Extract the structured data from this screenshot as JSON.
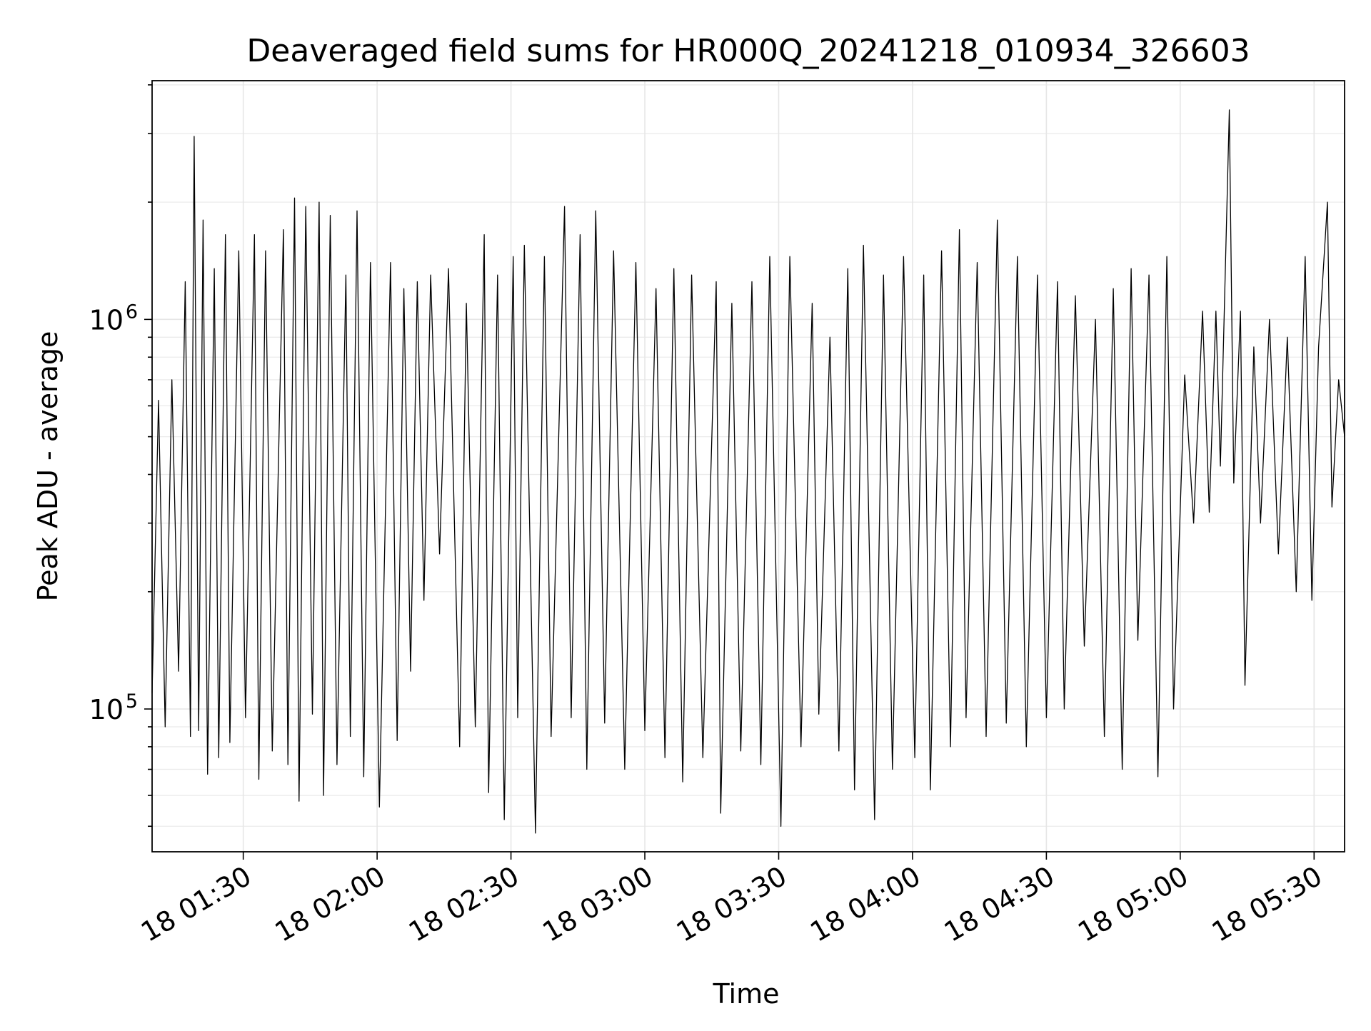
{
  "chart_data": {
    "type": "line",
    "title": "Deaveraged field sums for HR000Q_20241218_010934_326603",
    "xlabel": "Time",
    "ylabel": "Peak ADU - average",
    "yscale": "log",
    "x_start": "2024-12-18 01:09:34",
    "x_end": "2024-12-18 05:36:50",
    "xlim": [
      "2024-12-18 01:09:34",
      "2024-12-18 05:36:50"
    ],
    "ylim": [
      43000,
      4100000
    ],
    "x_ticks": [
      {
        "time": "01:30",
        "label": "18 01:30"
      },
      {
        "time": "02:00",
        "label": "18 02:00"
      },
      {
        "time": "02:30",
        "label": "18 02:30"
      },
      {
        "time": "03:00",
        "label": "18 03:00"
      },
      {
        "time": "03:30",
        "label": "18 03:30"
      },
      {
        "time": "04:00",
        "label": "18 04:00"
      },
      {
        "time": "04:30",
        "label": "18 04:30"
      },
      {
        "time": "05:00",
        "label": "18 05:00"
      },
      {
        "time": "05:30",
        "label": "18 05:30"
      }
    ],
    "y_ticks": [
      {
        "value": 100000,
        "base": "10",
        "exp": "5"
      },
      {
        "value": 1000000,
        "base": "10",
        "exp": "6"
      }
    ],
    "grid": true,
    "line_color": "#000000",
    "series": [
      {
        "points": [
          [
            "01:09:34",
            110000
          ],
          [
            "01:11:00",
            620000
          ],
          [
            "01:12:30",
            90000
          ],
          [
            "01:14:00",
            700000
          ],
          [
            "01:15:30",
            125000
          ],
          [
            "01:17:00",
            1250000
          ],
          [
            "01:18:10",
            85000
          ],
          [
            "01:19:00",
            2950000
          ],
          [
            "01:20:00",
            88000
          ],
          [
            "01:21:00",
            1800000
          ],
          [
            "01:22:00",
            68000
          ],
          [
            "01:23:30",
            1350000
          ],
          [
            "01:24:30",
            75000
          ],
          [
            "01:26:00",
            1650000
          ],
          [
            "01:27:00",
            82000
          ],
          [
            "01:29:00",
            1500000
          ],
          [
            "01:30:30",
            95000
          ],
          [
            "01:32:30",
            1650000
          ],
          [
            "01:33:30",
            66000
          ],
          [
            "01:35:00",
            1500000
          ],
          [
            "01:36:30",
            78000
          ],
          [
            "01:39:00",
            1700000
          ],
          [
            "01:40:00",
            72000
          ],
          [
            "01:41:30",
            2050000
          ],
          [
            "01:42:30",
            58000
          ],
          [
            "01:44:00",
            1950000
          ],
          [
            "01:45:30",
            97000
          ],
          [
            "01:47:00",
            2000000
          ],
          [
            "01:48:00",
            60000
          ],
          [
            "01:49:30",
            1850000
          ],
          [
            "01:51:00",
            72000
          ],
          [
            "01:53:00",
            1300000
          ],
          [
            "01:54:00",
            85000
          ],
          [
            "01:55:30",
            1900000
          ],
          [
            "01:57:00",
            67000
          ],
          [
            "01:58:30",
            1400000
          ],
          [
            "02:00:30",
            56000
          ],
          [
            "02:03:00",
            1400000
          ],
          [
            "02:04:30",
            83000
          ],
          [
            "02:06:00",
            1200000
          ],
          [
            "02:07:30",
            125000
          ],
          [
            "02:09:00",
            1250000
          ],
          [
            "02:10:30",
            190000
          ],
          [
            "02:12:00",
            1300000
          ],
          [
            "02:14:00",
            250000
          ],
          [
            "02:16:00",
            1350000
          ],
          [
            "02:18:30",
            80000
          ],
          [
            "02:20:00",
            1100000
          ],
          [
            "02:22:00",
            90000
          ],
          [
            "02:24:00",
            1650000
          ],
          [
            "02:25:00",
            61000
          ],
          [
            "02:27:00",
            1300000
          ],
          [
            "02:28:30",
            52000
          ],
          [
            "02:30:30",
            1450000
          ],
          [
            "02:31:30",
            95000
          ],
          [
            "02:33:00",
            1550000
          ],
          [
            "02:35:30",
            48000
          ],
          [
            "02:37:30",
            1450000
          ],
          [
            "02:39:00",
            85000
          ],
          [
            "02:42:00",
            1950000
          ],
          [
            "02:43:30",
            95000
          ],
          [
            "02:45:30",
            1650000
          ],
          [
            "02:47:00",
            70000
          ],
          [
            "02:49:00",
            1900000
          ],
          [
            "02:51:00",
            92000
          ],
          [
            "02:53:00",
            1500000
          ],
          [
            "02:55:30",
            70000
          ],
          [
            "02:58:00",
            1400000
          ],
          [
            "03:00:00",
            88000
          ],
          [
            "03:02:30",
            1200000
          ],
          [
            "03:04:30",
            75000
          ],
          [
            "03:06:30",
            1350000
          ],
          [
            "03:08:30",
            65000
          ],
          [
            "03:10:30",
            1300000
          ],
          [
            "03:13:00",
            75000
          ],
          [
            "03:16:00",
            1250000
          ],
          [
            "03:17:00",
            54000
          ],
          [
            "03:19:30",
            1100000
          ],
          [
            "03:21:30",
            78000
          ],
          [
            "03:24:00",
            1250000
          ],
          [
            "03:26:00",
            72000
          ],
          [
            "03:28:00",
            1450000
          ],
          [
            "03:30:30",
            50000
          ],
          [
            "03:32:30",
            1450000
          ],
          [
            "03:35:00",
            80000
          ],
          [
            "03:37:30",
            1100000
          ],
          [
            "03:39:00",
            97000
          ],
          [
            "03:41:30",
            900000
          ],
          [
            "03:43:30",
            78000
          ],
          [
            "03:45:30",
            1350000
          ],
          [
            "03:47:00",
            62000
          ],
          [
            "03:49:00",
            1550000
          ],
          [
            "03:51:30",
            52000
          ],
          [
            "03:53:30",
            1300000
          ],
          [
            "03:55:30",
            70000
          ],
          [
            "03:58:00",
            1450000
          ],
          [
            "04:00:30",
            75000
          ],
          [
            "04:02:30",
            1300000
          ],
          [
            "04:04:00",
            62000
          ],
          [
            "04:06:30",
            1500000
          ],
          [
            "04:08:30",
            80000
          ],
          [
            "04:10:30",
            1700000
          ],
          [
            "04:12:00",
            95000
          ],
          [
            "04:14:30",
            1400000
          ],
          [
            "04:16:30",
            85000
          ],
          [
            "04:19:00",
            1800000
          ],
          [
            "04:21:00",
            92000
          ],
          [
            "04:23:30",
            1450000
          ],
          [
            "04:25:30",
            80000
          ],
          [
            "04:28:00",
            1300000
          ],
          [
            "04:30:00",
            95000
          ],
          [
            "04:32:30",
            1250000
          ],
          [
            "04:34:00",
            100000
          ],
          [
            "04:36:30",
            1150000
          ],
          [
            "04:38:30",
            145000
          ],
          [
            "04:41:00",
            1000000
          ],
          [
            "04:43:00",
            85000
          ],
          [
            "04:45:00",
            1200000
          ],
          [
            "04:47:00",
            70000
          ],
          [
            "04:49:00",
            1350000
          ],
          [
            "04:50:30",
            150000
          ],
          [
            "04:53:00",
            1300000
          ],
          [
            "04:55:00",
            67000
          ],
          [
            "04:57:00",
            1450000
          ],
          [
            "04:58:30",
            100000
          ],
          [
            "05:01:00",
            720000
          ],
          [
            "05:03:00",
            300000
          ],
          [
            "05:05:00",
            1050000
          ],
          [
            "05:06:30",
            320000
          ],
          [
            "05:08:00",
            1050000
          ],
          [
            "05:09:00",
            420000
          ],
          [
            "05:11:00",
            3450000
          ],
          [
            "05:12:00",
            380000
          ],
          [
            "05:13:30",
            1050000
          ],
          [
            "05:14:30",
            115000
          ],
          [
            "05:16:30",
            850000
          ],
          [
            "05:18:00",
            300000
          ],
          [
            "05:20:00",
            1000000
          ],
          [
            "05:22:00",
            250000
          ],
          [
            "05:24:00",
            900000
          ],
          [
            "05:26:00",
            200000
          ],
          [
            "05:28:00",
            1450000
          ],
          [
            "05:29:30",
            190000
          ],
          [
            "05:31:00",
            850000
          ],
          [
            "05:33:00",
            2000000
          ],
          [
            "05:34:00",
            330000
          ],
          [
            "05:35:30",
            700000
          ],
          [
            "05:36:50",
            500000
          ]
        ]
      }
    ]
  }
}
